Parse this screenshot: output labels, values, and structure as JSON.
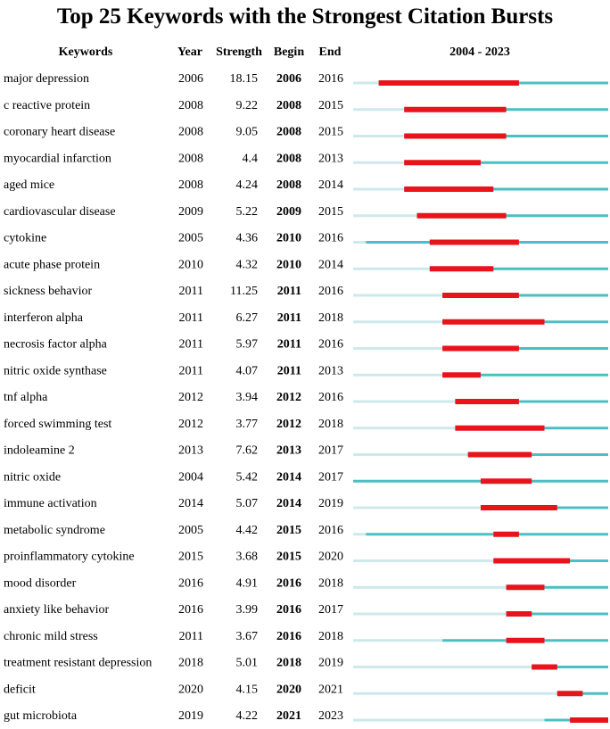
{
  "chart_data": {
    "type": "timeline",
    "title": "Top 25 Keywords with the Strongest Citation Bursts",
    "columns": {
      "keywords": "Keywords",
      "year": "Year",
      "strength": "Strength",
      "begin": "Begin",
      "end": "End",
      "range": "2004 - 2023"
    },
    "range_start": 2004,
    "range_end": 2023,
    "colors": {
      "burst": "#e8141b",
      "active": "#4bbfc3",
      "inactive": "#cde9ec"
    },
    "rows": [
      {
        "keyword": "major depression",
        "year": "2006",
        "strength": "18.15",
        "begin": "2006",
        "end": "2016"
      },
      {
        "keyword": "c reactive protein",
        "year": "2008",
        "strength": "9.22",
        "begin": "2008",
        "end": "2015"
      },
      {
        "keyword": "coronary heart disease",
        "year": "2008",
        "strength": "9.05",
        "begin": "2008",
        "end": "2015"
      },
      {
        "keyword": "myocardial infarction",
        "year": "2008",
        "strength": "4.4",
        "begin": "2008",
        "end": "2013"
      },
      {
        "keyword": "aged mice",
        "year": "2008",
        "strength": "4.24",
        "begin": "2008",
        "end": "2014"
      },
      {
        "keyword": "cardiovascular disease",
        "year": "2009",
        "strength": "5.22",
        "begin": "2009",
        "end": "2015"
      },
      {
        "keyword": "cytokine",
        "year": "2005",
        "strength": "4.36",
        "begin": "2010",
        "end": "2016"
      },
      {
        "keyword": "acute phase protein",
        "year": "2010",
        "strength": "4.32",
        "begin": "2010",
        "end": "2014"
      },
      {
        "keyword": "sickness behavior",
        "year": "2011",
        "strength": "11.25",
        "begin": "2011",
        "end": "2016"
      },
      {
        "keyword": "interferon alpha",
        "year": "2011",
        "strength": "6.27",
        "begin": "2011",
        "end": "2018"
      },
      {
        "keyword": "necrosis factor alpha",
        "year": "2011",
        "strength": "5.97",
        "begin": "2011",
        "end": "2016"
      },
      {
        "keyword": "nitric oxide synthase",
        "year": "2011",
        "strength": "4.07",
        "begin": "2011",
        "end": "2013"
      },
      {
        "keyword": "tnf alpha",
        "year": "2012",
        "strength": "3.94",
        "begin": "2012",
        "end": "2016"
      },
      {
        "keyword": "forced swimming test",
        "year": "2012",
        "strength": "3.77",
        "begin": "2012",
        "end": "2018"
      },
      {
        "keyword": "indoleamine 2",
        "year": "2013",
        "strength": "7.62",
        "begin": "2013",
        "end": "2017"
      },
      {
        "keyword": "nitric oxide",
        "year": "2004",
        "strength": "5.42",
        "begin": "2014",
        "end": "2017"
      },
      {
        "keyword": "immune activation",
        "year": "2014",
        "strength": "5.07",
        "begin": "2014",
        "end": "2019"
      },
      {
        "keyword": "metabolic syndrome",
        "year": "2005",
        "strength": "4.42",
        "begin": "2015",
        "end": "2016"
      },
      {
        "keyword": "proinflammatory cytokine",
        "year": "2015",
        "strength": "3.68",
        "begin": "2015",
        "end": "2020"
      },
      {
        "keyword": "mood disorder",
        "year": "2016",
        "strength": "4.91",
        "begin": "2016",
        "end": "2018"
      },
      {
        "keyword": "anxiety like behavior",
        "year": "2016",
        "strength": "3.99",
        "begin": "2016",
        "end": "2017"
      },
      {
        "keyword": "chronic mild stress",
        "year": "2011",
        "strength": "3.67",
        "begin": "2016",
        "end": "2018"
      },
      {
        "keyword": "treatment resistant depression",
        "year": "2018",
        "strength": "5.01",
        "begin": "2018",
        "end": "2019"
      },
      {
        "keyword": "deficit",
        "year": "2020",
        "strength": "4.15",
        "begin": "2020",
        "end": "2021"
      },
      {
        "keyword": "gut microbiota",
        "year": "2019",
        "strength": "4.22",
        "begin": "2021",
        "end": "2023"
      }
    ]
  }
}
